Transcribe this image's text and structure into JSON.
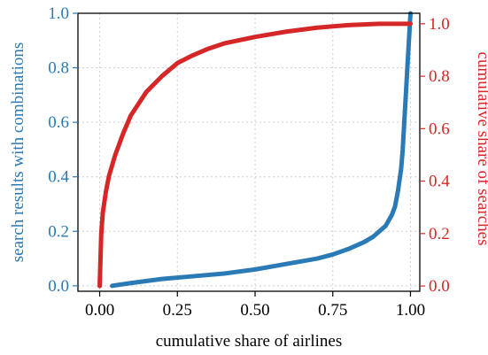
{
  "chart_data": {
    "type": "line",
    "xlabel": "cumulative share of airlines",
    "ylabel_left": "search results with combinations",
    "ylabel_right": "cumulative share of searches",
    "xlim": [
      -0.07,
      1.03
    ],
    "ylim_left": [
      -0.02,
      1.0
    ],
    "ylim_right": [
      -0.02,
      1.04
    ],
    "x_ticks": [
      "0.00",
      "0.25",
      "0.50",
      "0.75",
      "1.00"
    ],
    "y_left_ticks": [
      "0.0",
      "0.2",
      "0.4",
      "0.6",
      "0.8",
      "1.0"
    ],
    "y_right_ticks": [
      "0.0",
      "0.2",
      "0.4",
      "0.6",
      "0.8",
      "1.0"
    ],
    "grid": true,
    "colors": {
      "left_axis": "#2a7ab5",
      "right_axis": "#d62728",
      "blue_series": "#2a7ab5",
      "red_series": "#d62728"
    },
    "series": [
      {
        "axis": "left",
        "color": "#2a7ab5",
        "x": [
          0.04,
          0.1,
          0.2,
          0.3,
          0.4,
          0.5,
          0.6,
          0.7,
          0.75,
          0.8,
          0.85,
          0.88,
          0.9,
          0.92,
          0.93,
          0.94,
          0.95,
          0.96,
          0.97,
          0.975,
          0.98,
          0.985,
          0.99,
          0.995,
          1.0
        ],
        "y": [
          0.0,
          0.01,
          0.025,
          0.035,
          0.045,
          0.06,
          0.08,
          0.1,
          0.115,
          0.135,
          0.16,
          0.18,
          0.2,
          0.22,
          0.24,
          0.26,
          0.29,
          0.35,
          0.43,
          0.5,
          0.6,
          0.7,
          0.8,
          0.9,
          1.0
        ]
      },
      {
        "axis": "right",
        "color": "#d62728",
        "x": [
          0.0,
          0.005,
          0.01,
          0.02,
          0.03,
          0.05,
          0.075,
          0.1,
          0.15,
          0.2,
          0.25,
          0.3,
          0.35,
          0.4,
          0.5,
          0.6,
          0.7,
          0.8,
          0.9,
          1.0
        ],
        "y": [
          0.0,
          0.2,
          0.28,
          0.36,
          0.42,
          0.5,
          0.58,
          0.65,
          0.74,
          0.8,
          0.85,
          0.88,
          0.905,
          0.925,
          0.95,
          0.97,
          0.985,
          0.995,
          1.0,
          1.0
        ]
      }
    ]
  }
}
